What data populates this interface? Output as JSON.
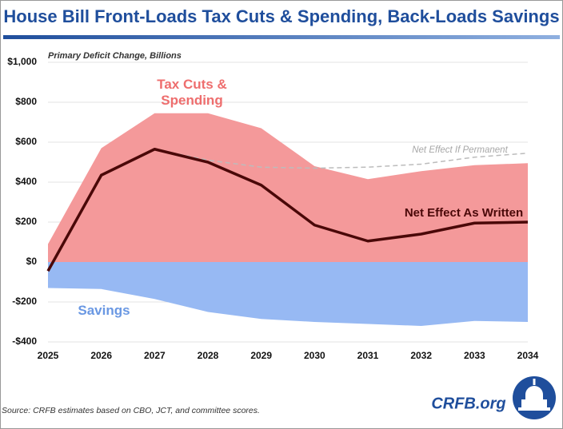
{
  "chart_data": {
    "type": "area",
    "title": "House Bill Front-Loads Tax Cuts & Spending, Back-Loads Savings",
    "subtitle": "Primary Deficit Change, Billions",
    "source": "Source: CRFB estimates based on CBO, JCT, and committee scores.",
    "logo": "CRFB.org",
    "categories": [
      "2025",
      "2026",
      "2027",
      "2028",
      "2029",
      "2030",
      "2031",
      "2032",
      "2033",
      "2034"
    ],
    "ylim": [
      -400,
      1000
    ],
    "yticks": [
      {
        "value": -400,
        "label": "-$400"
      },
      {
        "value": -200,
        "label": "-$200"
      },
      {
        "value": 0,
        "label": "$0"
      },
      {
        "value": 200,
        "label": "$200"
      },
      {
        "value": 400,
        "label": "$400"
      },
      {
        "value": 600,
        "label": "$600"
      },
      {
        "value": 800,
        "label": "$800"
      },
      {
        "value": 1000,
        "label": "$1,000"
      }
    ],
    "grid": true,
    "series": [
      {
        "name": "Tax Cuts & Spending",
        "kind": "area",
        "color": "#f4999a",
        "label_color": "#ee6e6e",
        "values": [
          90,
          570,
          745,
          745,
          670,
          480,
          415,
          455,
          485,
          495
        ]
      },
      {
        "name": "Savings",
        "kind": "area",
        "color": "#97b9f3",
        "label_color": "#6a98e3",
        "values": [
          -130,
          -135,
          -185,
          -250,
          -285,
          -300,
          -310,
          -320,
          -295,
          -300
        ]
      },
      {
        "name": "Net Effect If Permanent",
        "kind": "dashed",
        "color": "#bcbcbc",
        "label_color": "#a8a8a8",
        "values": [
          null,
          null,
          565,
          510,
          475,
          470,
          475,
          490,
          525,
          545
        ]
      },
      {
        "name": "Net Effect As Written",
        "kind": "line",
        "color": "#4a0808",
        "label_color": "#4a0808",
        "values": [
          -45,
          435,
          565,
          500,
          385,
          185,
          105,
          140,
          195,
          200
        ]
      }
    ]
  }
}
